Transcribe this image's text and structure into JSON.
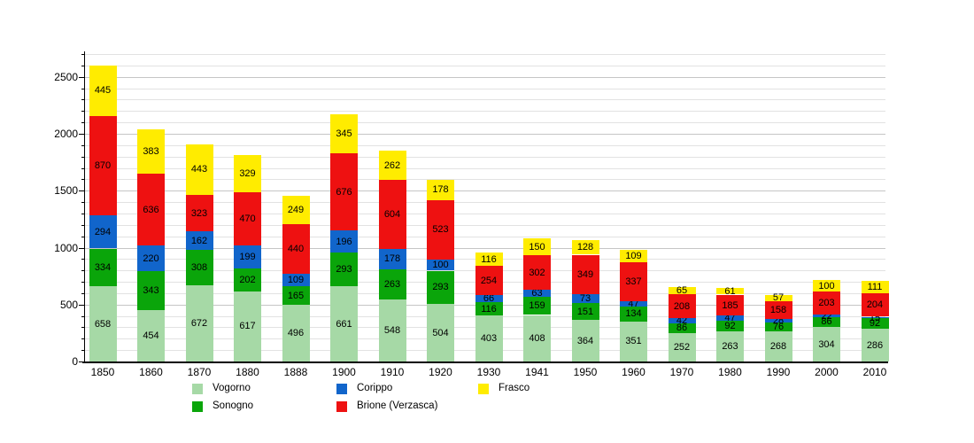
{
  "chart_data": {
    "type": "bar",
    "stacked": true,
    "title": "",
    "xlabel": "",
    "ylabel": "",
    "categories": [
      "1850",
      "1860",
      "1870",
      "1880",
      "1888",
      "1900",
      "1910",
      "1920",
      "1930",
      "1941",
      "1950",
      "1960",
      "1970",
      "1980",
      "1990",
      "2000",
      "2010"
    ],
    "series": [
      {
        "name": "Vogorno",
        "color": "#a6d9a6",
        "values": [
          658,
          454,
          672,
          617,
          496,
          661,
          548,
          504,
          403,
          408,
          364,
          351,
          252,
          263,
          268,
          304,
          286
        ]
      },
      {
        "name": "Sonogno",
        "color": "#0aa50a",
        "values": [
          334,
          343,
          308,
          202,
          165,
          293,
          263,
          293,
          116,
          159,
          151,
          134,
          86,
          92,
          76,
          86,
          92
        ]
      },
      {
        "name": "Corippo",
        "color": "#1165cb",
        "values": [
          294,
          220,
          162,
          199,
          109,
          196,
          178,
          100,
          66,
          63,
          73,
          47,
          42,
          47,
          28,
          22,
          15
        ]
      },
      {
        "name": "Brione (Verzasca)",
        "color": "#ee1111",
        "values": [
          870,
          636,
          323,
          470,
          440,
          676,
          604,
          523,
          254,
          302,
          349,
          337,
          208,
          185,
          158,
          203,
          204
        ]
      },
      {
        "name": "Frasco",
        "color": "#ffec00",
        "values": [
          445,
          383,
          443,
          329,
          249,
          345,
          262,
          178,
          116,
          150,
          128,
          109,
          65,
          61,
          57,
          100,
          111
        ]
      }
    ],
    "ylim": [
      0,
      2700
    ],
    "y_ticks": [
      0,
      500,
      1000,
      1500,
      2000,
      2500
    ],
    "grid_step": 100,
    "grid": true,
    "legend_position": "bottom",
    "colors": {
      "grid_minor": "#e2e2e2",
      "grid_major": "#c6c6c6",
      "axis": "#000000",
      "value_label": "#000000"
    }
  }
}
